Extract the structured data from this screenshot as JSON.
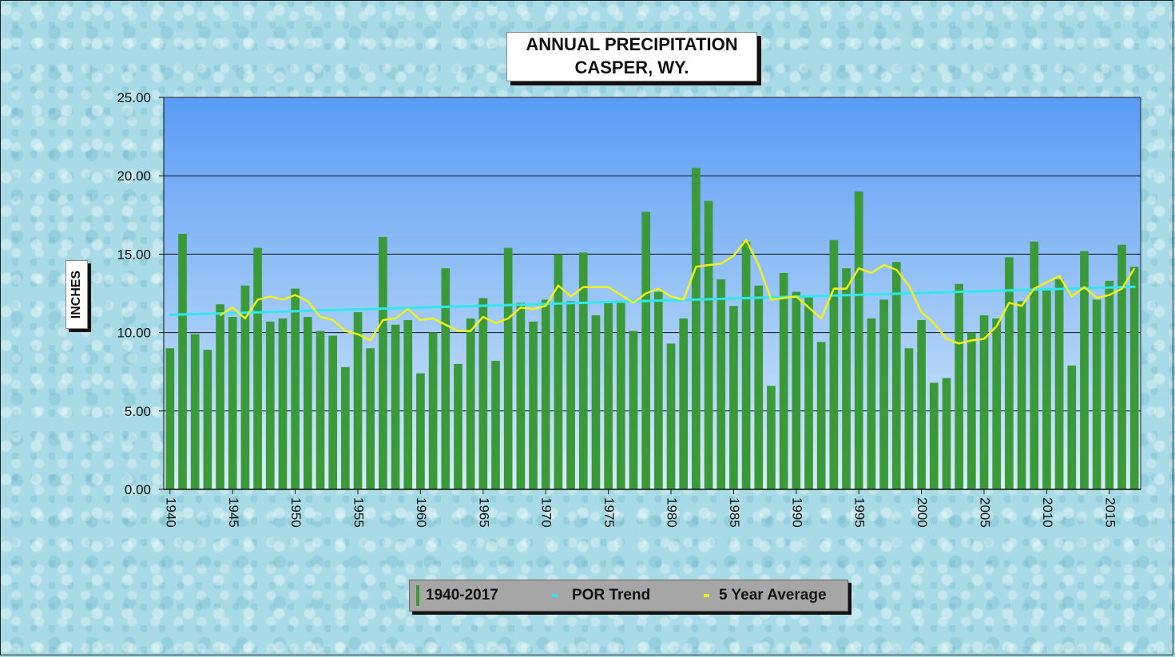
{
  "chart_data": {
    "type": "bar",
    "title": [
      "ANNUAL PRECIPITATION",
      "CASPER, WY."
    ],
    "ylabel": "INCHES",
    "ylim": [
      0,
      25
    ],
    "yticks": [
      "0.00",
      "5.00",
      "10.00",
      "15.00",
      "20.00",
      "25.00"
    ],
    "grid": true,
    "x_start": 1940,
    "x_end": 2017,
    "xtick_labels": [
      "1940",
      "1945",
      "1950",
      "1955",
      "1960",
      "1965",
      "1970",
      "1975",
      "1980",
      "1985",
      "1990",
      "1995",
      "2000",
      "2005",
      "2010",
      "2015"
    ],
    "series": [
      {
        "name": "1940-2017",
        "type": "bar",
        "color": "#3a9a3a",
        "values": [
          9.0,
          16.3,
          9.9,
          8.9,
          11.8,
          11.0,
          13.0,
          15.4,
          10.7,
          10.9,
          12.8,
          11.0,
          10.1,
          9.8,
          7.8,
          11.3,
          9.0,
          16.1,
          10.5,
          10.8,
          7.4,
          10.0,
          14.1,
          8.0,
          10.9,
          12.2,
          8.2,
          15.4,
          11.9,
          10.7,
          12.1,
          15.0,
          12.0,
          15.1,
          11.1,
          11.9,
          11.9,
          10.1,
          17.7,
          12.6,
          9.3,
          10.9,
          20.5,
          18.4,
          13.4,
          11.7,
          15.8,
          13.0,
          6.6,
          13.8,
          12.6,
          12.3,
          9.4,
          15.9,
          14.1,
          19.0,
          10.9,
          12.1,
          14.5,
          9.0,
          10.8,
          6.8,
          7.1,
          13.1,
          10.0,
          11.1,
          10.9,
          14.8,
          12.0,
          15.8,
          12.7,
          13.4,
          7.9,
          15.2,
          12.1,
          13.3,
          15.6,
          14.2
        ]
      },
      {
        "name": "POR Trend",
        "type": "line",
        "color": "#33e6ee",
        "values": [
          11.13,
          12.92
        ]
      },
      {
        "name": "5 Year Average",
        "type": "line",
        "color": "#f2f21a",
        "values": [
          null,
          null,
          null,
          null,
          11.1,
          11.6,
          10.9,
          12.1,
          12.3,
          12.1,
          12.4,
          12.0,
          11.0,
          10.8,
          10.1,
          9.9,
          9.5,
          10.8,
          10.9,
          11.5,
          10.8,
          10.9,
          10.5,
          10.1,
          10.1,
          11.0,
          10.6,
          10.9,
          11.6,
          11.5,
          11.7,
          13.0,
          12.3,
          12.9,
          12.9,
          12.9,
          12.4,
          11.9,
          12.5,
          12.8,
          12.3,
          12.1,
          14.2,
          14.3,
          14.4,
          14.9,
          15.9,
          14.3,
          12.1,
          12.2,
          12.3,
          11.6,
          10.9,
          12.8,
          12.8,
          14.1,
          13.8,
          14.3,
          14.0,
          13.0,
          11.3,
          10.6,
          9.6,
          9.3,
          9.5,
          9.6,
          10.4,
          11.9,
          11.7,
          12.8,
          13.2,
          13.6,
          12.3,
          12.9,
          12.2,
          12.4,
          12.8,
          14.1
        ]
      }
    ],
    "legend": {
      "position": "bottom"
    }
  }
}
